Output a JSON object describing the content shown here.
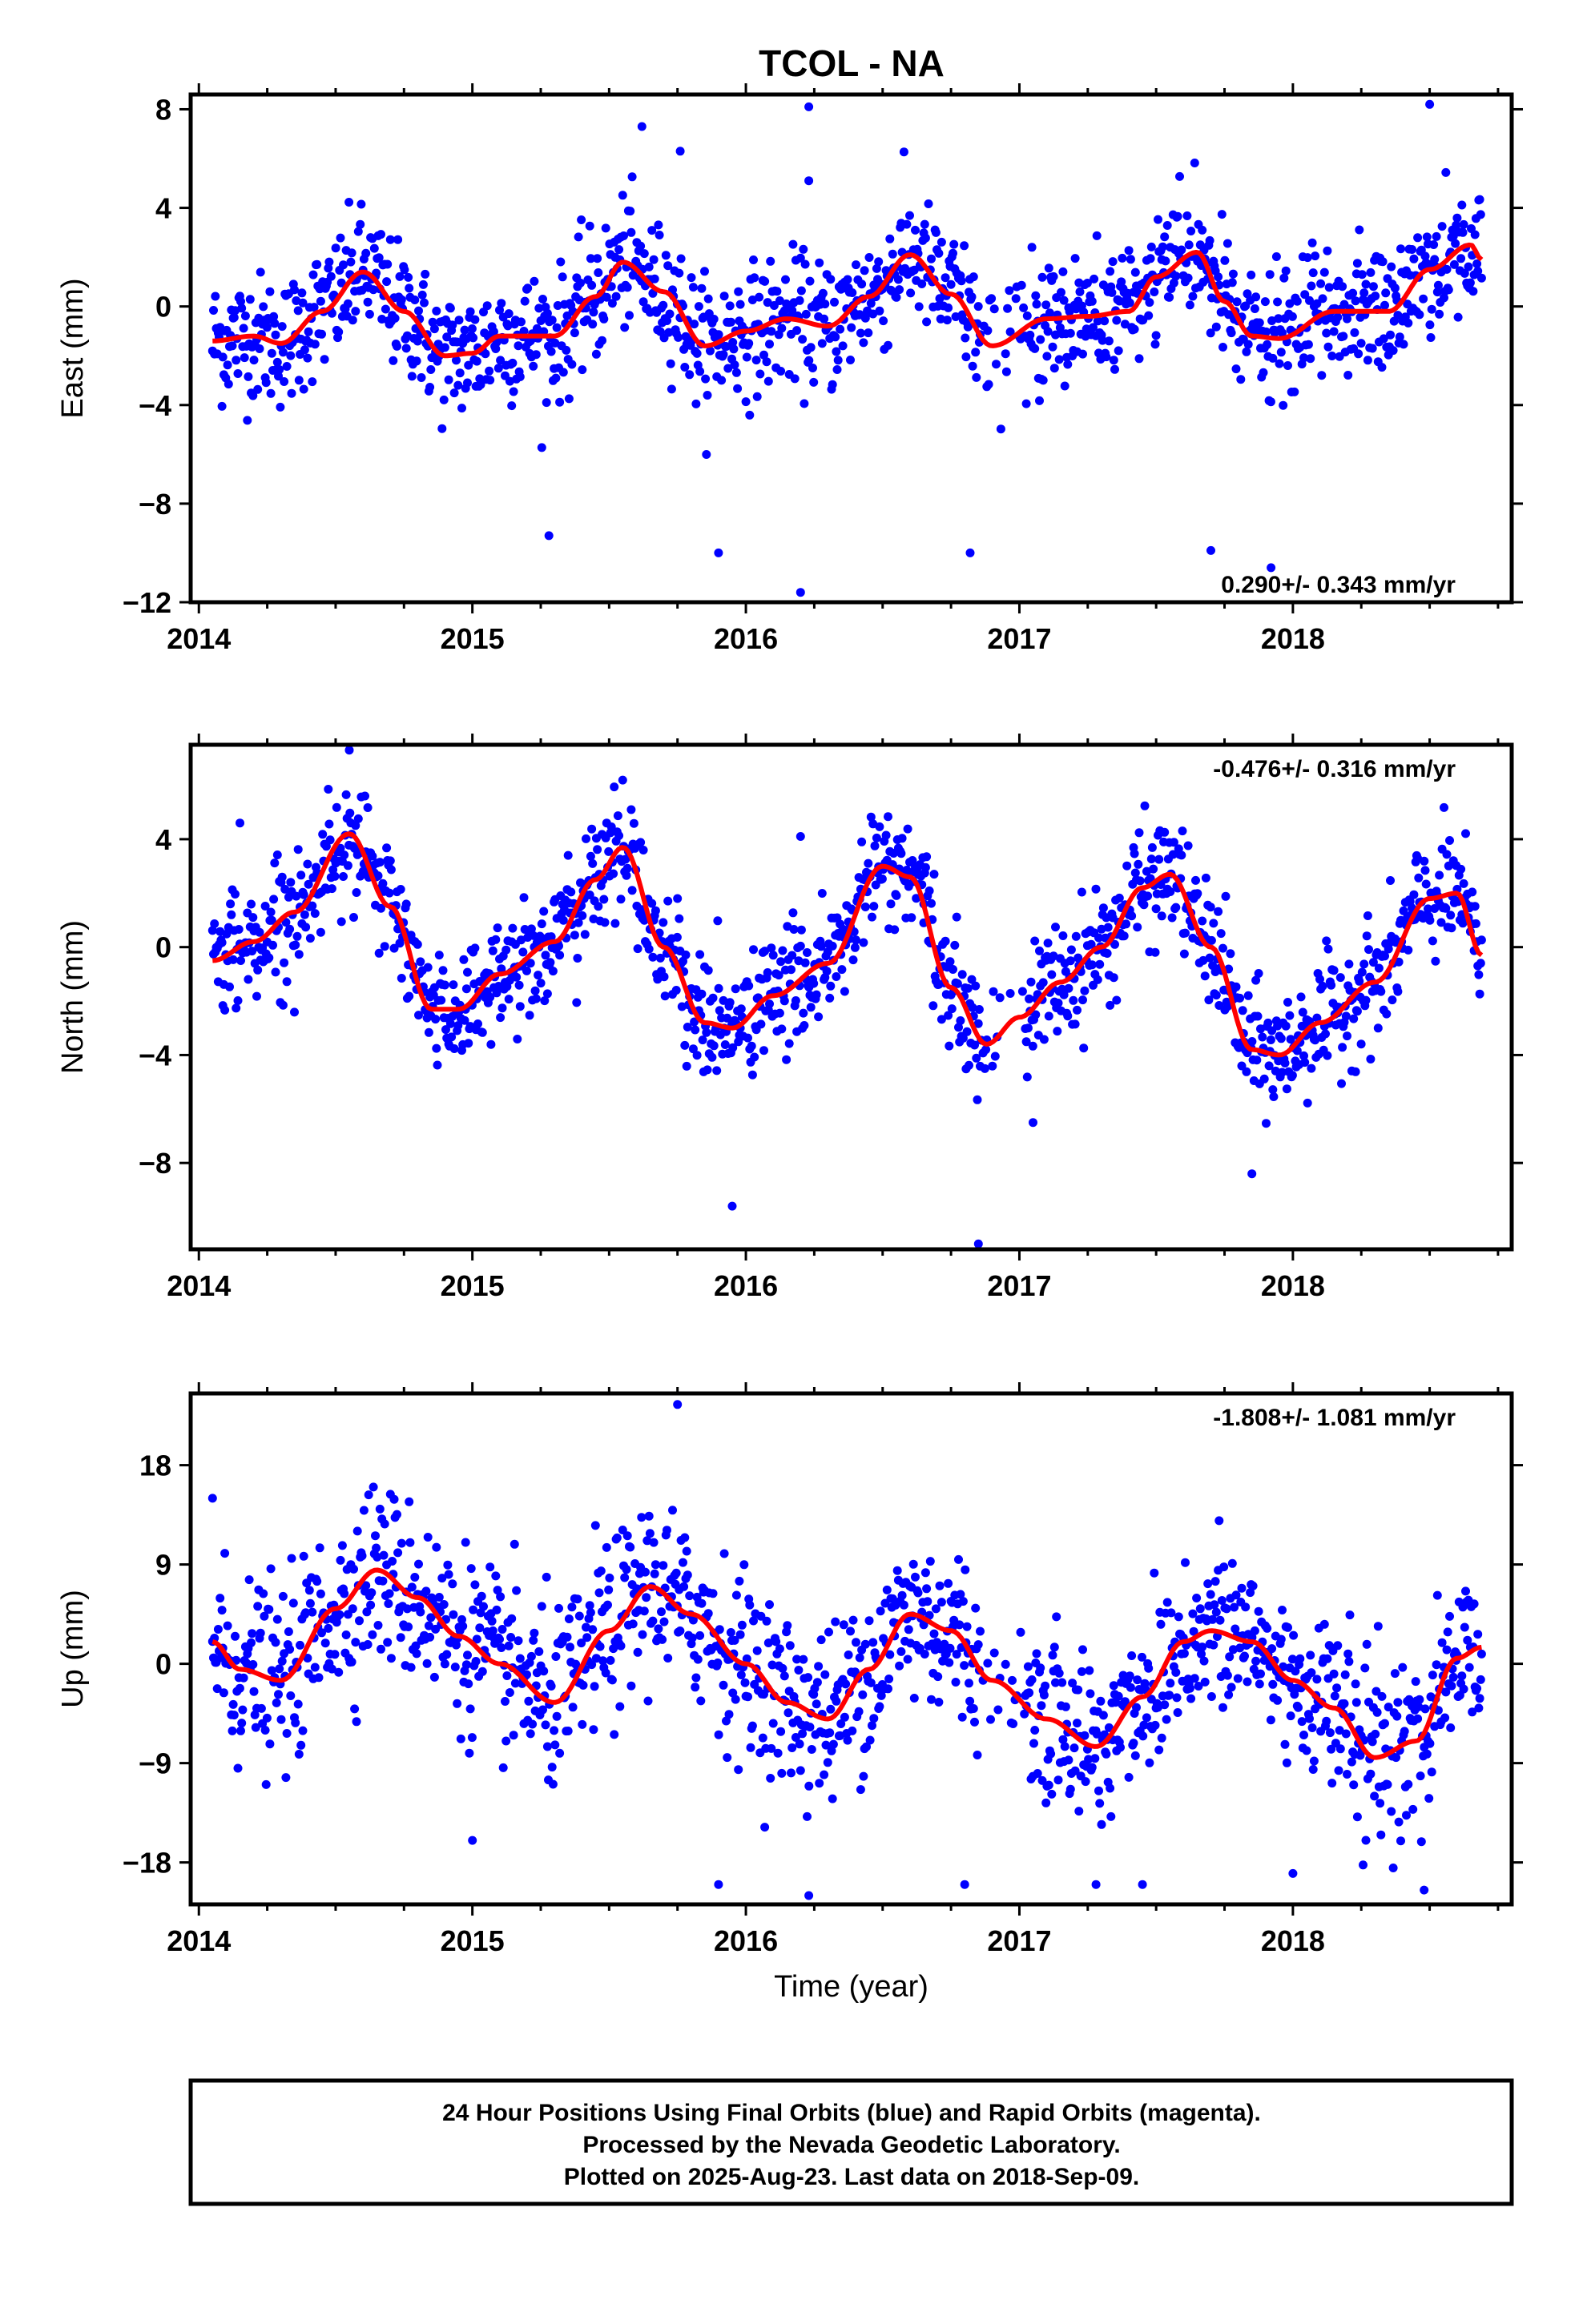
{
  "title": "TCOL - NA",
  "colors": {
    "final_orbits": "#0000ff",
    "fit": "#ff0000",
    "frame": "#000000"
  },
  "footer": [
    "24 Hour Positions Using Final Orbits (blue) and Rapid Orbits (magenta).",
    "Processed by the Nevada Geodetic Laboratory.",
    "Plotted on 2025-Aug-23. Last data on 2018-Sep-09."
  ],
  "chart_data": [
    {
      "type": "scatter",
      "ylabel": "East (mm)",
      "xlabel": "",
      "xlim": [
        2013.97,
        2018.8
      ],
      "ylim": [
        -12,
        8.6
      ],
      "xticks": [
        2014,
        2015,
        2016,
        2017,
        2018
      ],
      "yticks": [
        8,
        4,
        0,
        -4,
        -8,
        -12
      ],
      "ytick_labels": [
        "8",
        "4",
        "0",
        "−4",
        "−8",
        "−12"
      ],
      "rate_label": "0.290+/- 0.343 mm/yr",
      "rate_position": "bottom-right",
      "noise_sd": 1.3,
      "data_start": 2014.05,
      "data_end": 2018.69,
      "fit_curve": {
        "x": [
          2014.05,
          2014.2,
          2014.3,
          2014.45,
          2014.6,
          2014.75,
          2014.9,
          2015.0,
          2015.1,
          2015.3,
          2015.45,
          2015.55,
          2015.7,
          2015.85,
          2016.0,
          2016.15,
          2016.3,
          2016.45,
          2016.6,
          2016.75,
          2016.9,
          2017.1,
          2017.25,
          2017.4,
          2017.5,
          2017.65,
          2017.75,
          2017.85,
          2017.95,
          2018.15,
          2018.35,
          2018.5,
          2018.65,
          2018.69
        ],
        "y": [
          -1.4,
          -1.2,
          -1.5,
          -0.2,
          1.4,
          -0.2,
          -2.0,
          -1.9,
          -1.2,
          -1.2,
          0.4,
          1.8,
          0.6,
          -1.6,
          -1.0,
          -0.5,
          -0.8,
          0.4,
          2.1,
          0.5,
          -1.6,
          -0.5,
          -0.4,
          -0.2,
          1.2,
          2.2,
          0.2,
          -1.2,
          -1.3,
          -0.2,
          -0.2,
          1.5,
          2.5,
          1.9
        ]
      },
      "outliers": {
        "x": [
          2015.28,
          2015.9,
          2016.2,
          2016.23,
          2016.82,
          2017.7,
          2017.92,
          2015.62,
          2018.5,
          2016.23,
          2015.76
        ],
        "y": [
          -9.3,
          -10.0,
          -11.6,
          8.1,
          -10.0,
          -9.9,
          -10.6,
          7.3,
          8.2,
          5.1,
          6.3
        ]
      }
    },
    {
      "type": "scatter",
      "ylabel": "North (mm)",
      "xlabel": "",
      "xlim": [
        2013.97,
        2018.8
      ],
      "ylim": [
        -11.2,
        7.5
      ],
      "xticks": [
        2014,
        2015,
        2016,
        2017,
        2018
      ],
      "yticks": [
        4,
        0,
        -4,
        -8
      ],
      "ytick_labels": [
        "4",
        "0",
        "−4",
        "−8"
      ],
      "rate_label": "-0.476+/- 0.316 mm/yr",
      "rate_position": "top-right",
      "noise_sd": 1.1,
      "data_start": 2014.05,
      "data_end": 2018.69,
      "fit_curve": {
        "x": [
          2014.05,
          2014.2,
          2014.35,
          2014.55,
          2014.7,
          2014.85,
          2014.95,
          2015.1,
          2015.3,
          2015.45,
          2015.55,
          2015.7,
          2015.85,
          2015.95,
          2016.1,
          2016.3,
          2016.5,
          2016.6,
          2016.75,
          2016.88,
          2017.0,
          2017.15,
          2017.3,
          2017.45,
          2017.55,
          2017.7,
          2017.85,
          2017.95,
          2018.1,
          2018.3,
          2018.5,
          2018.6,
          2018.69
        ],
        "y": [
          -0.5,
          0.2,
          1.3,
          4.2,
          1.5,
          -2.3,
          -2.3,
          -1.0,
          0.2,
          2.5,
          3.7,
          0.0,
          -2.8,
          -3.0,
          -1.8,
          -0.6,
          3.0,
          2.6,
          -1.5,
          -3.6,
          -2.6,
          -1.3,
          0.0,
          2.2,
          2.7,
          0.0,
          -3.8,
          -4.0,
          -2.8,
          -1.3,
          1.8,
          2.0,
          -0.3
        ]
      },
      "outliers": {
        "x": [
          2015.95,
          2016.85,
          2017.05,
          2017.85,
          2015.75,
          2016.65,
          2016.2,
          2014.55,
          2014.15
        ],
        "y": [
          -9.6,
          -11.0,
          -6.5,
          -8.4,
          1.8,
          0.9,
          4.1,
          7.3,
          4.6
        ]
      }
    },
    {
      "type": "scatter",
      "ylabel": "Up (mm)",
      "xlabel": "Time (year)",
      "xlim": [
        2013.97,
        2018.8
      ],
      "ylim": [
        -21.8,
        24.5
      ],
      "xticks": [
        2014,
        2015,
        2016,
        2017,
        2018
      ],
      "yticks": [
        18,
        9,
        0,
        -9,
        -18
      ],
      "ytick_labels": [
        "18",
        "9",
        "0",
        "−9",
        "−18"
      ],
      "rate_label": "-1.808+/- 1.081 mm/yr",
      "rate_position": "top-right",
      "noise_sd": 4.0,
      "data_start": 2014.05,
      "data_end": 2018.69,
      "fit_curve": {
        "x": [
          2014.05,
          2014.15,
          2014.3,
          2014.5,
          2014.65,
          2014.8,
          2014.95,
          2015.1,
          2015.3,
          2015.5,
          2015.65,
          2015.8,
          2016.0,
          2016.15,
          2016.3,
          2016.45,
          2016.6,
          2016.75,
          2016.9,
          2017.1,
          2017.28,
          2017.45,
          2017.6,
          2017.7,
          2017.85,
          2018.0,
          2018.15,
          2018.3,
          2018.45,
          2018.6,
          2018.69
        ],
        "y": [
          2.0,
          -0.5,
          -1.5,
          5.0,
          8.5,
          6.0,
          2.5,
          0.0,
          -3.5,
          3.0,
          7.0,
          4.5,
          0.0,
          -3.5,
          -5.0,
          -0.5,
          4.5,
          3.0,
          -1.5,
          -5.0,
          -7.5,
          -3.0,
          2.0,
          3.0,
          2.0,
          -1.5,
          -4.0,
          -8.5,
          -7.0,
          0.5,
          1.5
        ]
      },
      "outliers": {
        "x": [
          2015.75,
          2015.9,
          2016.23,
          2017.28,
          2017.45,
          2018.0,
          2018.48,
          2015.0,
          2016.8,
          2014.05
        ],
        "y": [
          23.5,
          -20.0,
          -21.0,
          -20.0,
          -20.0,
          -19.0,
          -20.5,
          -16.0,
          -20.0,
          15.0
        ]
      }
    }
  ]
}
